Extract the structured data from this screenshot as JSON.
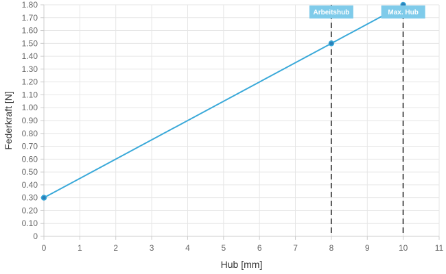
{
  "chart_data": {
    "type": "line",
    "title": "",
    "xlabel": "Hub [mm]",
    "ylabel": "Federkraft [N]",
    "xlim": [
      0,
      11
    ],
    "ylim": [
      0,
      1.8
    ],
    "x_ticks": [
      "0",
      "1",
      "2",
      "3",
      "4",
      "5",
      "6",
      "7",
      "8",
      "9",
      "10",
      "11"
    ],
    "y_ticks": [
      "0",
      "0.10",
      "0.20",
      "0.30",
      "0.40",
      "0.50",
      "0.60",
      "0.70",
      "0.80",
      "0.90",
      "1.00",
      "1.10",
      "1.20",
      "1.30",
      "1.40",
      "1.50",
      "1.60",
      "1.70",
      "1.80"
    ],
    "grid": true,
    "series": [
      {
        "x": [
          0,
          8,
          10
        ],
        "y": [
          0.3,
          1.5,
          1.8
        ],
        "color": "#3aa9d9"
      }
    ],
    "annotations": [
      {
        "x": 8,
        "label": "Arbeitshub"
      },
      {
        "x": 10,
        "label": "Max. Hub"
      }
    ],
    "colors": {
      "line": "#3aa9d9",
      "marker_fill": "#2a7fb8",
      "annotation_bg": "#7fcbea",
      "annotation_line": "#555555",
      "grid": "#e6e6e6",
      "axis": "#cccccc"
    }
  }
}
